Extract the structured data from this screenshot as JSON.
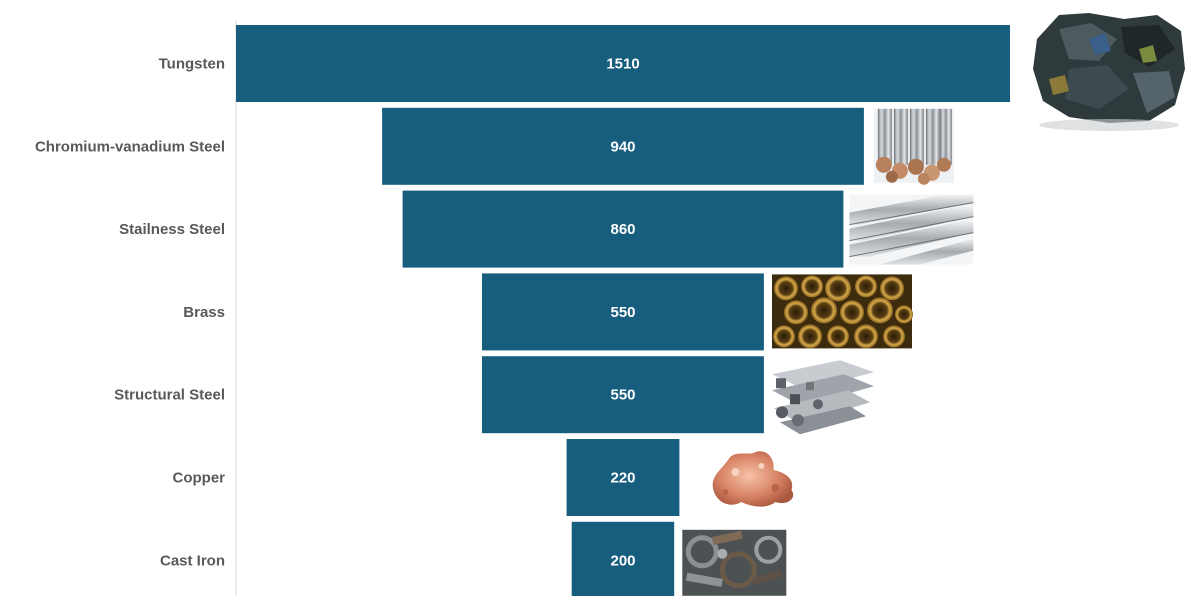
{
  "chart_data": {
    "type": "bar",
    "orientation": "horizontal",
    "layout": "funnel",
    "categories": [
      "Tungsten",
      "Chromium-vanadium Steel",
      "Stailness Steel",
      "Brass",
      "Structural Steel",
      "Copper",
      "Cast Iron"
    ],
    "values": [
      1510,
      940,
      860,
      550,
      550,
      220,
      200
    ],
    "value_labels": [
      "1510",
      "940",
      "860",
      "550",
      "550",
      "220",
      "200"
    ],
    "title": "",
    "xlabel": "",
    "ylabel": "",
    "xlim": [
      0,
      1510
    ],
    "grid": false,
    "legend": "none",
    "images": [
      "tungsten-ore",
      "steel-rods",
      "steel-flats",
      "brass-tubes",
      "steel-profiles",
      "copper-nugget",
      "cast-iron-scrap"
    ],
    "colors": {
      "bar": "#175e7e",
      "category_label": "#595959",
      "value_label": "#ffffff",
      "axis_line": "#d9d9d9"
    }
  }
}
